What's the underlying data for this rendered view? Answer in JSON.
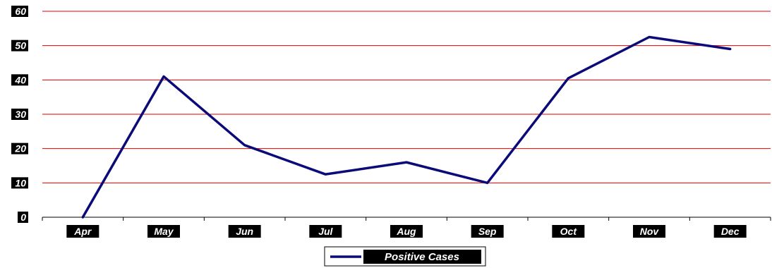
{
  "chart_data": {
    "type": "line",
    "categories": [
      "Apr",
      "May",
      "Jun",
      "Jul",
      "Aug",
      "Sep",
      "Oct",
      "Nov",
      "Dec"
    ],
    "series": [
      {
        "name": "Positive Cases",
        "values": [
          0,
          41,
          21,
          12.5,
          16,
          10,
          40.5,
          52.5,
          49
        ],
        "color": "#0a0a78"
      }
    ],
    "yticks": [
      "0",
      "10",
      "20",
      "30",
      "40",
      "50",
      "60"
    ],
    "ylim": [
      0,
      60
    ],
    "grid": true,
    "grid_color": "#e00000",
    "legend": "bottom-center"
  }
}
